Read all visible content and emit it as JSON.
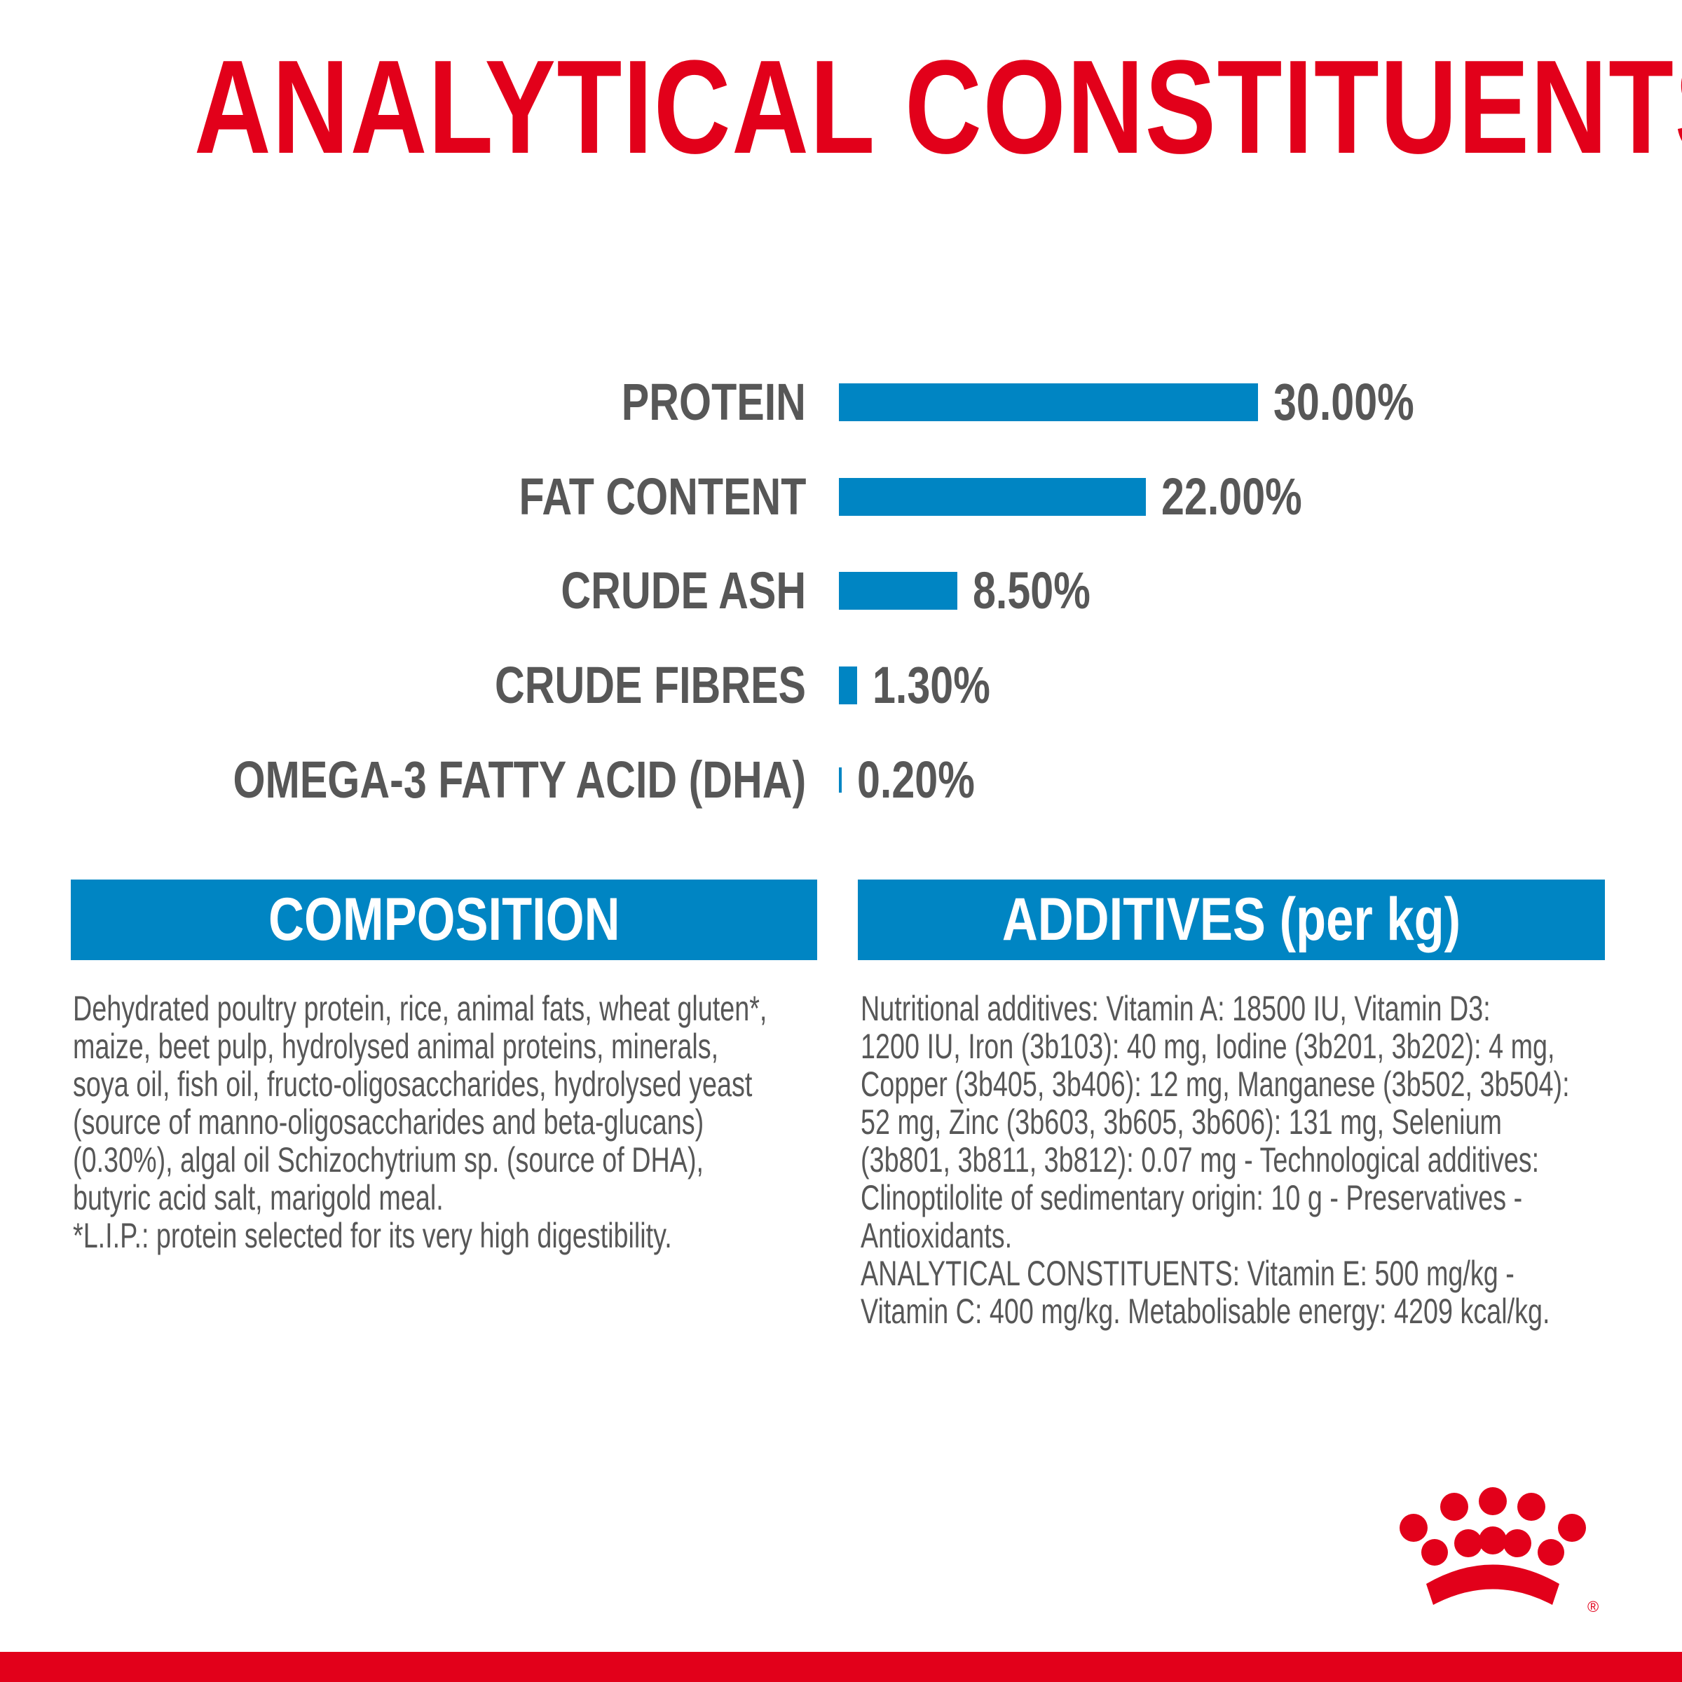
{
  "title": "ANALYTICAL CONSTITUENTS",
  "colors": {
    "brand_red": "#e2001a",
    "bar_blue": "#0085c3",
    "text_gray": "#575757"
  },
  "chart_data": {
    "type": "bar",
    "orientation": "horizontal",
    "categories": [
      "PROTEIN",
      "FAT CONTENT",
      "CRUDE ASH",
      "CRUDE FIBRES",
      "OMEGA-3 FATTY ACID (DHA)"
    ],
    "values": [
      30.0,
      22.0,
      8.5,
      1.3,
      0.2
    ],
    "labels": [
      "30.00%",
      "22.00%",
      "8.50%",
      "1.30%",
      "0.20%"
    ],
    "unit": "%"
  },
  "composition": {
    "heading": "COMPOSITION",
    "lines": [
      "Dehydrated poultry protein, rice, animal fats, wheat gluten*,",
      "maize, beet pulp, hydrolysed animal proteins, minerals,",
      "soya oil, fish oil, fructo-oligosaccharides, hydrolysed yeast",
      "(source of manno-oligosaccharides and beta-glucans)",
      "(0.30%), algal oil Schizochytrium sp. (source of DHA),",
      "butyric acid salt, marigold meal.",
      "*L.I.P.: protein selected for its very high digestibility."
    ]
  },
  "additives": {
    "heading": "ADDITIVES (per kg)",
    "lines": [
      "Nutritional additives: Vitamin A: 18500 IU, Vitamin D3:",
      "1200 IU, Iron (3b103): 40 mg, Iodine (3b201, 3b202): 4 mg,",
      "Copper (3b405, 3b406): 12 mg, Manganese (3b502, 3b504):",
      "52 mg, Zinc (3b603, 3b605, 3b606): 131 mg, Selenium",
      "(3b801, 3b811, 3b812): 0.07 mg - Technological additives:",
      "Clinoptilolite of sedimentary origin: 10 g - Preservatives -",
      "Antioxidants.",
      "ANALYTICAL CONSTITUENTS: Vitamin E: 500 mg/kg -",
      "Vitamin C: 400 mg/kg. Metabolisable energy: 4209 kcal/kg."
    ]
  },
  "logo": {
    "brand": "Royal Canin",
    "registered_mark": "®"
  }
}
